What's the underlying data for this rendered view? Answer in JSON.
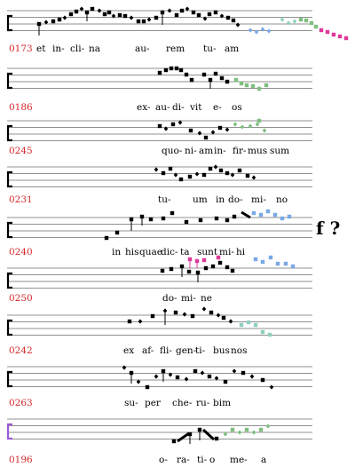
{
  "page": {
    "side_mark": "f ?",
    "colors": {
      "line_number": "#d6272a",
      "ink": "#000000",
      "blue": "#7aa7e6",
      "green": "#7fbf7f",
      "magenta": "#e0389a",
      "purple": "#9a5bd6",
      "teal": "#8fd0c0"
    }
  },
  "systems": [
    {
      "number": "0173",
      "syllables": [
        "et",
        "in-",
        "cli-",
        "na",
        "au-",
        "rem",
        "tu-",
        "am"
      ]
    },
    {
      "number": "0186",
      "syllables": [
        "ex-",
        "au-",
        "di-",
        "vit",
        "e-",
        "os"
      ]
    },
    {
      "number": "0245",
      "syllables": [
        "quo-",
        "ni-",
        "am",
        "in-",
        "fir-",
        "mus",
        "sum"
      ]
    },
    {
      "number": "0231",
      "syllables": [
        "tu-",
        "um",
        "in",
        "do-",
        "mi-",
        "no"
      ]
    },
    {
      "number": "0240",
      "syllables": [
        "in",
        "his",
        "quae",
        "dic-",
        "ta",
        "sunt",
        "mi-",
        "hi"
      ]
    },
    {
      "number": "0250",
      "syllables": [
        "do-",
        "mi-",
        "ne"
      ]
    },
    {
      "number": "0242",
      "syllables": [
        "ex",
        "af-",
        "fli-",
        "gen-",
        "ti-",
        "bus",
        "nos"
      ]
    },
    {
      "number": "0263",
      "syllables": [
        "su-",
        "per",
        "che-",
        "ru-",
        "bim"
      ]
    },
    {
      "number": "0196",
      "syllables": [
        "o-",
        "ra-",
        "ti-",
        "o",
        "me-",
        "a"
      ]
    }
  ]
}
